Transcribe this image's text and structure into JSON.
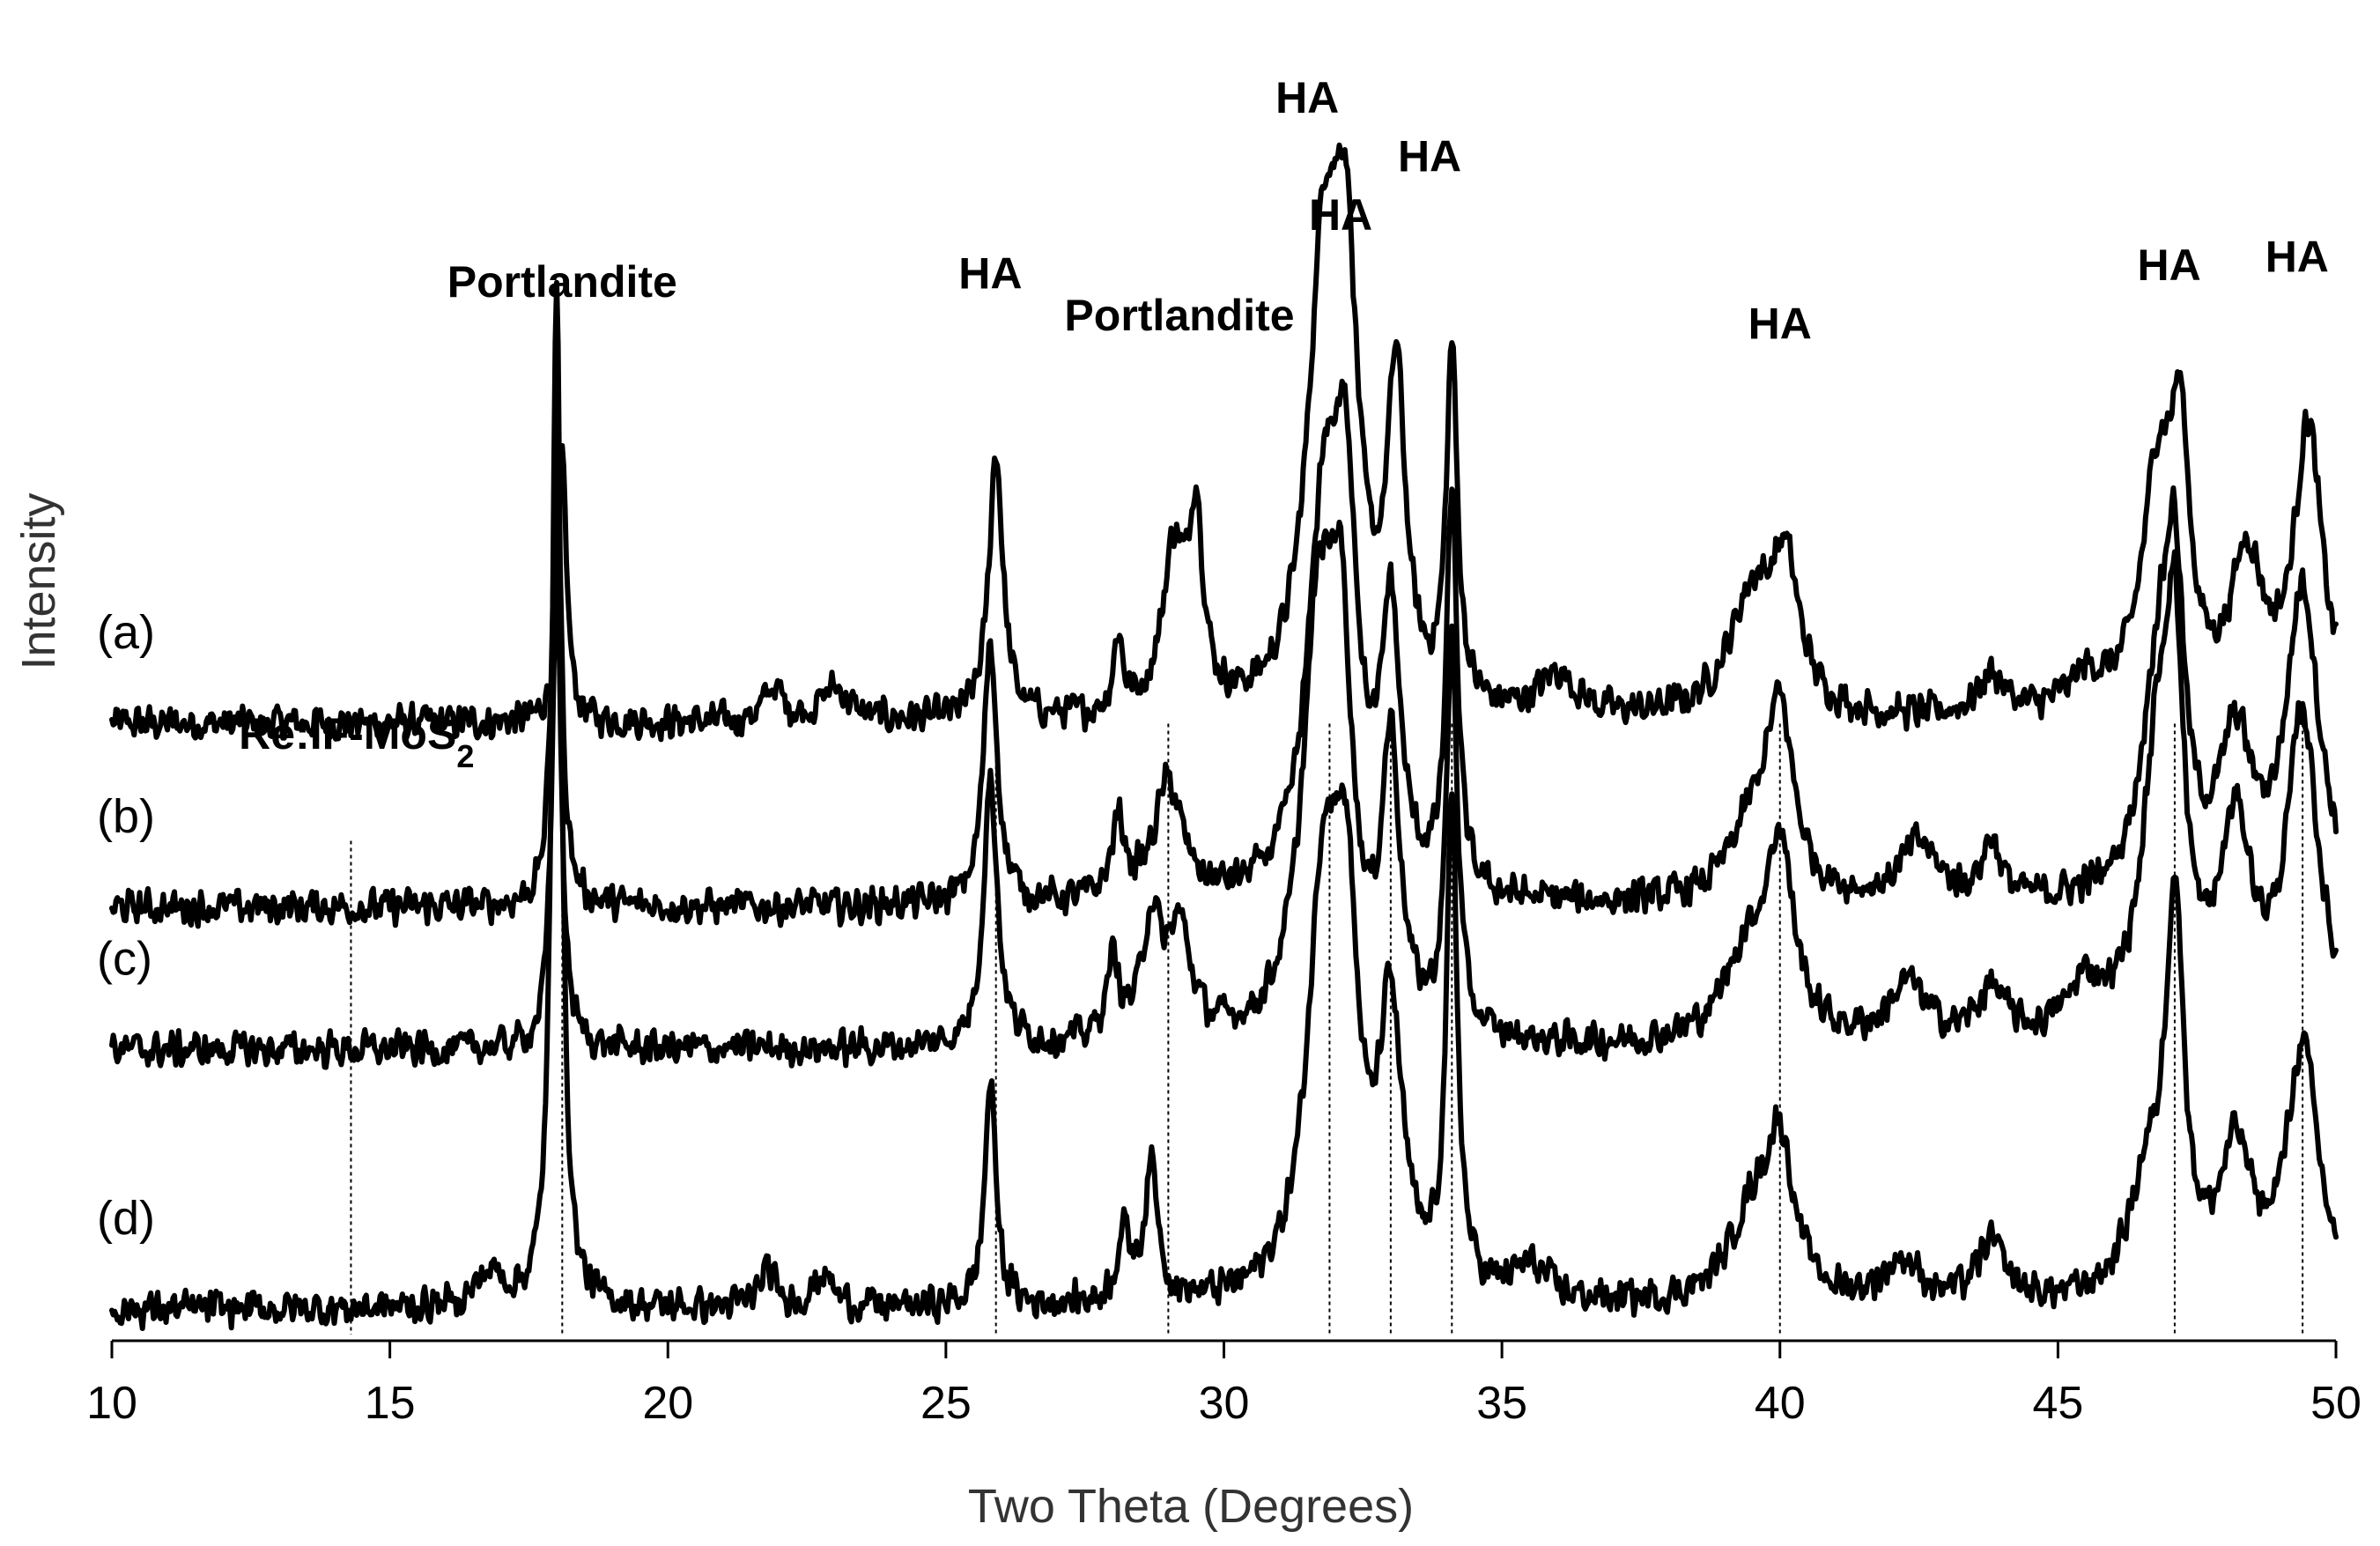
{
  "chart_data": {
    "type": "line",
    "title": "",
    "xlabel": "Two Theta (Degrees)",
    "ylabel": "Intensity",
    "xlim": [
      10,
      50
    ],
    "xticks": [
      "10",
      "15",
      "20",
      "25",
      "30",
      "35",
      "40",
      "45",
      "50"
    ],
    "grid": false,
    "legend": "none",
    "noise_amplitude": 0.25,
    "series": [
      {
        "label": "(a)",
        "baseline": 7.3,
        "peaks": [
          {
            "x": 18.1,
            "h": 3.1,
            "w": 0.1
          },
          {
            "x": 21.9,
            "h": 0.4,
            "w": 0.2
          },
          {
            "x": 23.0,
            "h": 0.4,
            "w": 0.3
          },
          {
            "x": 25.9,
            "h": 3.2,
            "w": 0.15
          },
          {
            "x": 28.1,
            "h": 0.9,
            "w": 0.1
          },
          {
            "x": 29.1,
            "h": 1.9,
            "w": 0.25
          },
          {
            "x": 29.5,
            "h": 2.2,
            "w": 0.15
          },
          {
            "x": 31.8,
            "h": 5.2,
            "w": 0.35
          },
          {
            "x": 32.2,
            "h": 4.3,
            "w": 0.25
          },
          {
            "x": 33.1,
            "h": 3.8,
            "w": 0.2
          },
          {
            "x": 34.1,
            "h": 4.2,
            "w": 0.12
          },
          {
            "x": 36.0,
            "h": 0.5,
            "w": 0.4
          },
          {
            "x": 39.5,
            "h": 1.4,
            "w": 0.5
          },
          {
            "x": 40.1,
            "h": 1.6,
            "w": 0.3
          },
          {
            "x": 43.8,
            "h": 0.5,
            "w": 0.3
          },
          {
            "x": 45.5,
            "h": 0.4,
            "w": 0.4
          },
          {
            "x": 46.8,
            "h": 2.8,
            "w": 0.35
          },
          {
            "x": 47.2,
            "h": 2.7,
            "w": 0.2
          },
          {
            "x": 48.4,
            "h": 1.8,
            "w": 0.35
          },
          {
            "x": 49.5,
            "h": 3.4,
            "w": 0.3
          }
        ]
      },
      {
        "label": "(b)",
        "baseline": 5.1,
        "peaks": [
          {
            "x": 18.0,
            "h": 5.6,
            "w": 0.1
          },
          {
            "x": 25.8,
            "h": 3.1,
            "w": 0.15
          },
          {
            "x": 28.1,
            "h": 0.9,
            "w": 0.15
          },
          {
            "x": 29.0,
            "h": 1.4,
            "w": 0.3
          },
          {
            "x": 31.8,
            "h": 4.4,
            "w": 0.35
          },
          {
            "x": 32.2,
            "h": 3.9,
            "w": 0.25
          },
          {
            "x": 33.0,
            "h": 3.2,
            "w": 0.2
          },
          {
            "x": 34.1,
            "h": 4.7,
            "w": 0.12
          },
          {
            "x": 39.5,
            "h": 0.8,
            "w": 0.5
          },
          {
            "x": 40.0,
            "h": 2.1,
            "w": 0.3
          },
          {
            "x": 42.5,
            "h": 0.7,
            "w": 0.4
          },
          {
            "x": 43.8,
            "h": 0.7,
            "w": 0.2
          },
          {
            "x": 46.8,
            "h": 2.5,
            "w": 0.35
          },
          {
            "x": 47.1,
            "h": 3.1,
            "w": 0.2
          },
          {
            "x": 48.2,
            "h": 1.8,
            "w": 0.35
          },
          {
            "x": 49.4,
            "h": 3.7,
            "w": 0.35
          }
        ]
      },
      {
        "label": "(c)",
        "baseline": 3.4,
        "peaks": [
          {
            "x": 18.0,
            "h": 5.7,
            "w": 0.1
          },
          {
            "x": 25.8,
            "h": 3.2,
            "w": 0.15
          },
          {
            "x": 28.0,
            "h": 0.9,
            "w": 0.15
          },
          {
            "x": 28.7,
            "h": 1.4,
            "w": 0.2
          },
          {
            "x": 29.2,
            "h": 1.3,
            "w": 0.25
          },
          {
            "x": 31.7,
            "h": 4.7,
            "w": 0.35
          },
          {
            "x": 32.1,
            "h": 3.9,
            "w": 0.25
          },
          {
            "x": 33.0,
            "h": 3.3,
            "w": 0.2
          },
          {
            "x": 34.1,
            "h": 4.7,
            "w": 0.12
          },
          {
            "x": 39.4,
            "h": 1.0,
            "w": 0.5
          },
          {
            "x": 40.0,
            "h": 2.2,
            "w": 0.3
          },
          {
            "x": 42.3,
            "h": 0.7,
            "w": 0.4
          },
          {
            "x": 43.8,
            "h": 0.6,
            "w": 0.3
          },
          {
            "x": 45.5,
            "h": 0.6,
            "w": 0.4
          },
          {
            "x": 46.8,
            "h": 3.1,
            "w": 0.35
          },
          {
            "x": 47.1,
            "h": 3.6,
            "w": 0.2
          },
          {
            "x": 48.2,
            "h": 2.4,
            "w": 0.35
          },
          {
            "x": 49.4,
            "h": 3.8,
            "w": 0.35
          }
        ]
      },
      {
        "label": "(d)",
        "baseline": 0.3,
        "peaks": [
          {
            "x": 16.8,
            "h": 0.4,
            "w": 0.3
          },
          {
            "x": 18.0,
            "h": 12.4,
            "w": 0.1
          },
          {
            "x": 21.8,
            "h": 0.4,
            "w": 0.2
          },
          {
            "x": 22.8,
            "h": 0.4,
            "w": 0.2
          },
          {
            "x": 25.8,
            "h": 2.7,
            "w": 0.12
          },
          {
            "x": 28.2,
            "h": 0.8,
            "w": 0.15
          },
          {
            "x": 28.7,
            "h": 1.6,
            "w": 0.15
          },
          {
            "x": 31.8,
            "h": 4.8,
            "w": 0.35
          },
          {
            "x": 32.2,
            "h": 3.7,
            "w": 0.25
          },
          {
            "x": 33.0,
            "h": 3.2,
            "w": 0.25
          },
          {
            "x": 34.1,
            "h": 5.7,
            "w": 0.12
          },
          {
            "x": 35.5,
            "h": 0.4,
            "w": 0.4
          },
          {
            "x": 39.5,
            "h": 1.0,
            "w": 0.5
          },
          {
            "x": 40.0,
            "h": 1.7,
            "w": 0.3
          },
          {
            "x": 42.2,
            "h": 0.5,
            "w": 0.4
          },
          {
            "x": 43.8,
            "h": 0.7,
            "w": 0.3
          },
          {
            "x": 46.6,
            "h": 1.3,
            "w": 0.4
          },
          {
            "x": 47.1,
            "h": 4.5,
            "w": 0.2
          },
          {
            "x": 48.2,
            "h": 1.7,
            "w": 0.35
          },
          {
            "x": 49.4,
            "h": 3.0,
            "w": 0.35
          }
        ]
      }
    ],
    "reference_lines": [
      {
        "x": 14.3,
        "top_series": "(b)"
      },
      {
        "x": 18.1,
        "top_series": "(a)"
      },
      {
        "x": 25.9,
        "top_series": "(a)"
      },
      {
        "x": 29.0,
        "top_series": "(a)"
      },
      {
        "x": 31.9,
        "top_series": "(a)"
      },
      {
        "x": 33.0,
        "top_series": "(a)"
      },
      {
        "x": 34.1,
        "top_series": "(a)"
      },
      {
        "x": 40.0,
        "top_series": "(a)"
      },
      {
        "x": 47.1,
        "top_series": "(a)"
      },
      {
        "x": 49.4,
        "top_series": "(a)"
      }
    ],
    "annotations": [
      {
        "text": "Portlandite",
        "x": 18.1,
        "y": 12.4
      },
      {
        "text": "HA",
        "x": 25.8,
        "y": 12.5
      },
      {
        "text": "Portlandite",
        "x": 29.2,
        "y": 12.0
      },
      {
        "text": "HA",
        "x": 31.5,
        "y": 14.6
      },
      {
        "text": "HA",
        "x": 32.1,
        "y": 13.2
      },
      {
        "text": "HA",
        "x": 33.7,
        "y": 13.9
      },
      {
        "text": "HA",
        "x": 40.0,
        "y": 11.9
      },
      {
        "text": "HA",
        "x": 47.0,
        "y": 12.6
      },
      {
        "text": "HA",
        "x": 49.3,
        "y": 12.7
      },
      {
        "text": "Re:IF-MoS",
        "sub": "2",
        "x": 14.4,
        "y": 7.0
      }
    ]
  }
}
